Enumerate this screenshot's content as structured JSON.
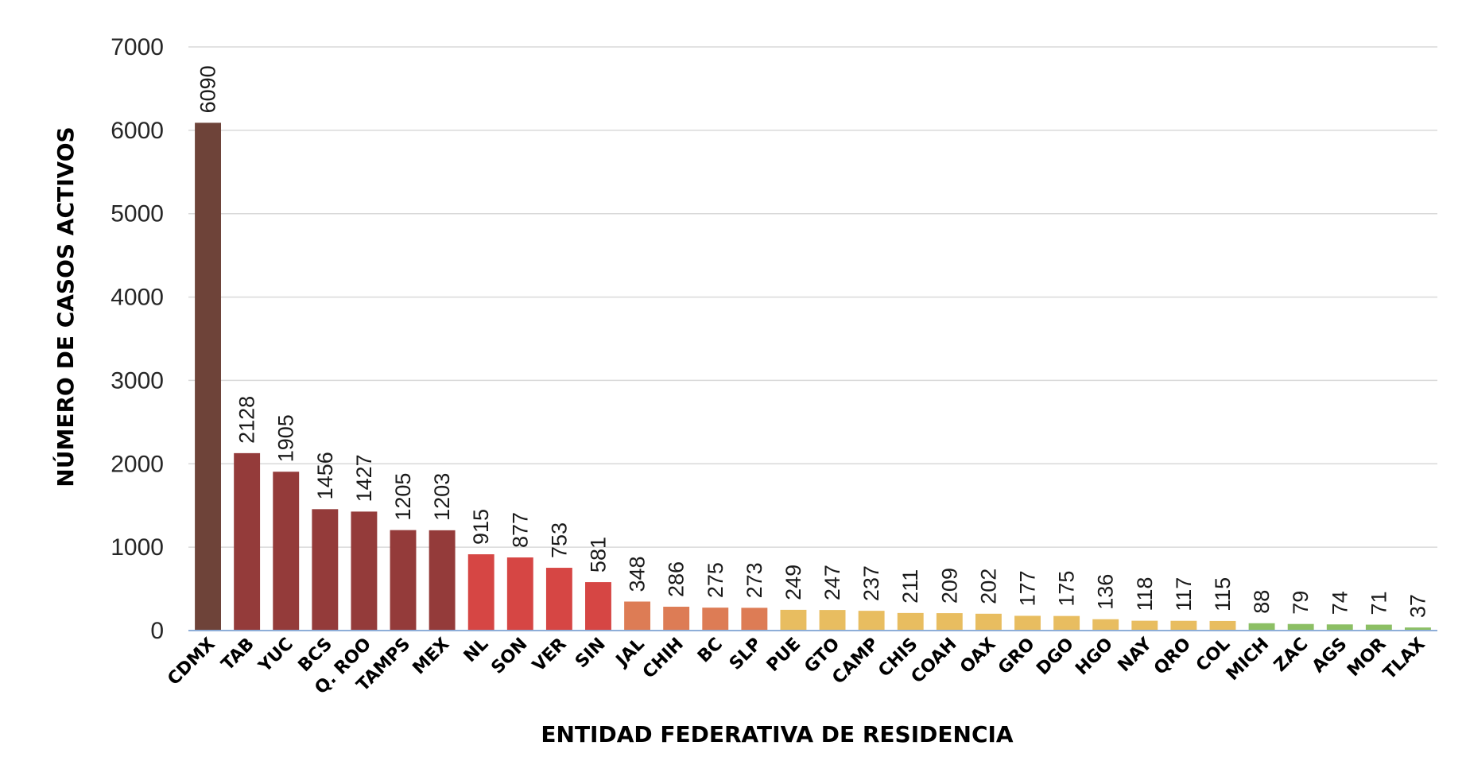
{
  "chart_data": {
    "type": "bar",
    "title": "",
    "xlabel": "ENTIDAD FEDERATIVA DE RESIDENCIA",
    "ylabel": "NÚMERO DE CASOS ACTIVOS",
    "ylim": [
      0,
      7000
    ],
    "yticks": [
      0,
      1000,
      2000,
      3000,
      4000,
      5000,
      6000,
      7000
    ],
    "grid": true,
    "legend": "none",
    "categories": [
      "CDMX",
      "TAB",
      "YUC",
      "BCS",
      "Q. ROO",
      "TAMPS",
      "MEX",
      "NL",
      "SON",
      "VER",
      "SIN",
      "JAL",
      "CHIH",
      "BC",
      "SLP",
      "PUE",
      "GTO",
      "CAMP",
      "CHIS",
      "COAH",
      "OAX",
      "GRO",
      "DGO",
      "HGO",
      "NAY",
      "QRO",
      "COL",
      "MICH",
      "ZAC",
      "AGS",
      "MOR",
      "TLAX"
    ],
    "values": [
      6090,
      2128,
      1905,
      1456,
      1427,
      1205,
      1203,
      915,
      877,
      753,
      581,
      348,
      286,
      275,
      273,
      249,
      247,
      237,
      211,
      209,
      202,
      177,
      175,
      136,
      118,
      117,
      115,
      88,
      79,
      74,
      71,
      37
    ],
    "colors": [
      "#6e4339",
      "#943b3a",
      "#943b3a",
      "#943b3a",
      "#943b3a",
      "#943b3a",
      "#943b3a",
      "#d64644",
      "#d64644",
      "#d64644",
      "#d64644",
      "#dd7c55",
      "#dd7c55",
      "#dd7c55",
      "#dd7c55",
      "#e8bd60",
      "#e8bd60",
      "#e8bd60",
      "#e8bd60",
      "#e8bd60",
      "#e8bd60",
      "#e8bd60",
      "#e8bd60",
      "#e8bd60",
      "#e8bd60",
      "#e8bd60",
      "#e8bd60",
      "#8cbf64",
      "#8cbf64",
      "#8cbf64",
      "#8cbf64",
      "#8cbf64"
    ]
  }
}
